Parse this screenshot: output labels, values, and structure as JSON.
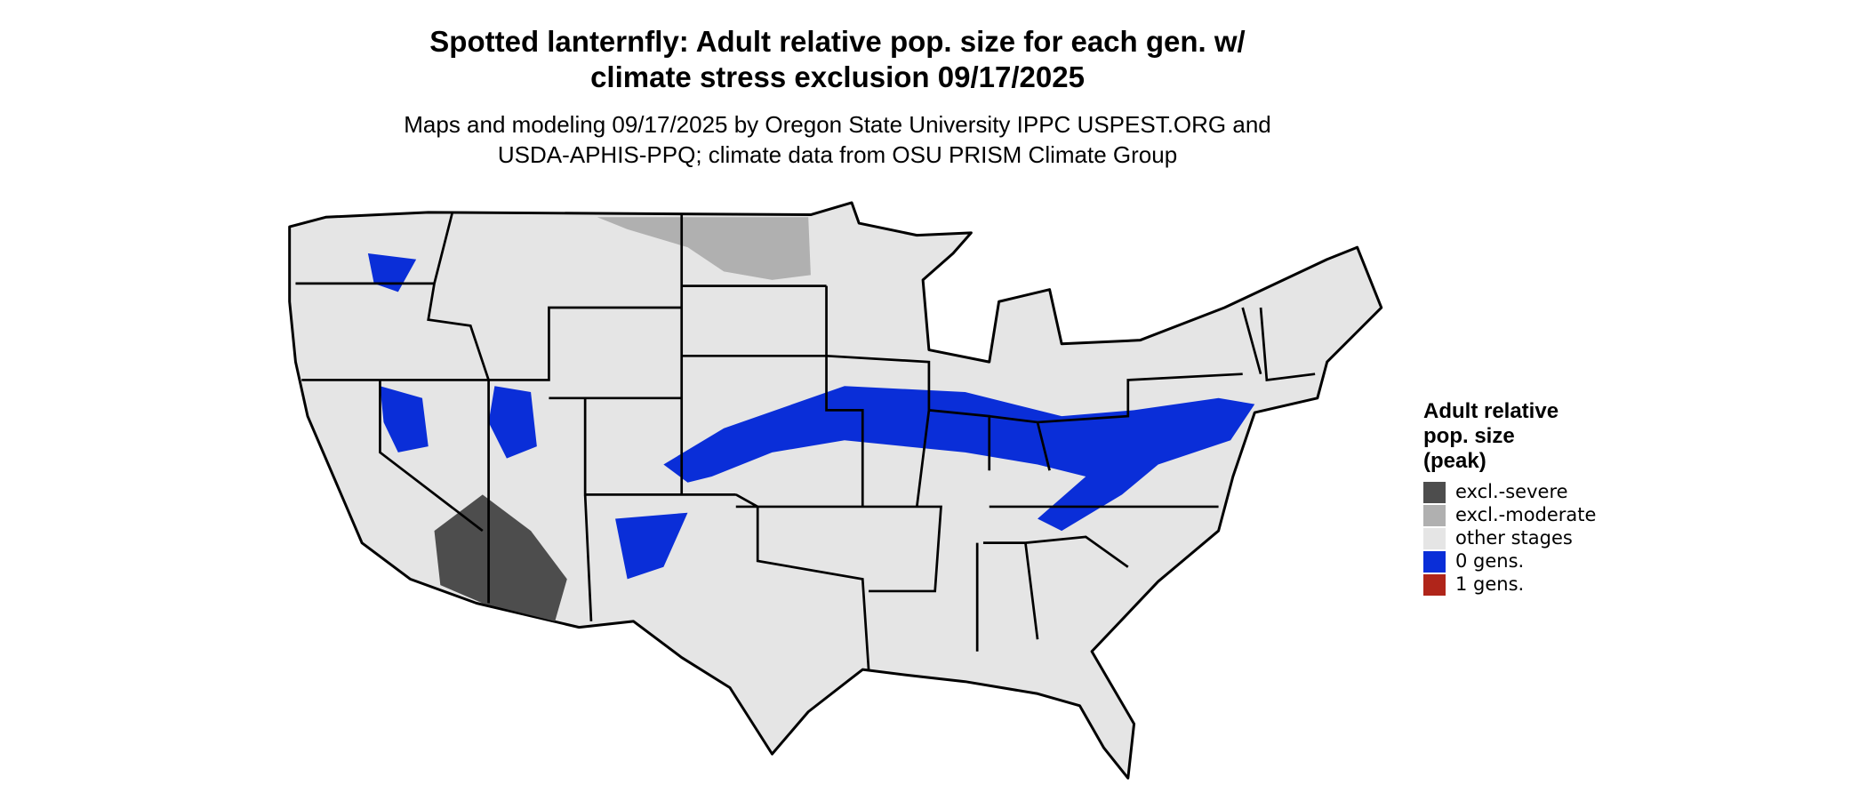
{
  "title": [
    "Spotted lanternfly: Adult relative pop. size for each gen. w/",
    "climate stress exclusion 09/17/2025"
  ],
  "subtitle": [
    "Maps and modeling 09/17/2025 by Oregon State University IPPC USPEST.ORG and",
    "USDA-APHIS-PPQ; climate data from OSU PRISM Climate Group"
  ],
  "legend": {
    "title": [
      "Adult relative",
      "pop. size",
      "(peak)"
    ],
    "items": [
      {
        "label": "excl.-severe",
        "color": "#4d4d4d"
      },
      {
        "label": "excl.-moderate",
        "color": "#b0b0b0"
      },
      {
        "label": "other stages",
        "color": "#e5e5e5"
      },
      {
        "label": "0 gens.",
        "color": "#0a2ed8"
      },
      {
        "label": "1 gens.",
        "color": "#b0251a"
      }
    ]
  }
}
